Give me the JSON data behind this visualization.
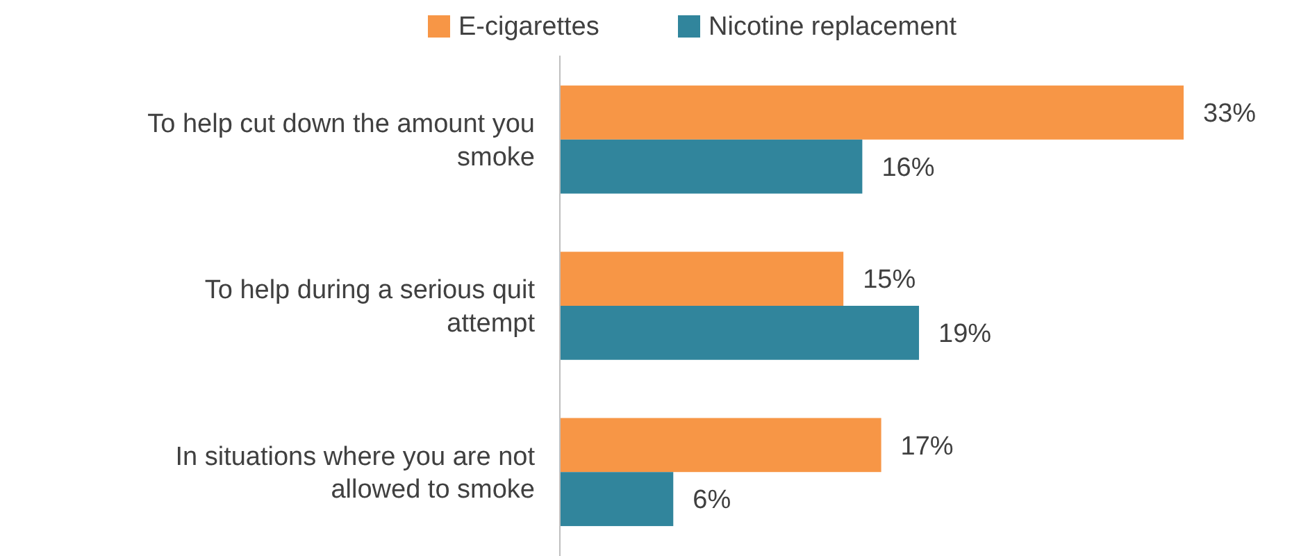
{
  "chart_data": {
    "type": "bar",
    "orientation": "horizontal",
    "categories": [
      "To help cut down the amount you smoke",
      "To help during a serious quit attempt",
      "In situations where you are not allowed to smoke"
    ],
    "series": [
      {
        "name": "E-cigarettes",
        "color": "#f79646",
        "values": [
          33,
          15,
          17
        ],
        "value_labels": [
          "33%",
          "15%",
          "17%"
        ]
      },
      {
        "name": "Nicotine replacement",
        "color": "#31859c",
        "values": [
          16,
          19,
          6
        ],
        "value_labels": [
          "16%",
          "19%",
          "6%"
        ]
      }
    ],
    "legend": "top"
  }
}
